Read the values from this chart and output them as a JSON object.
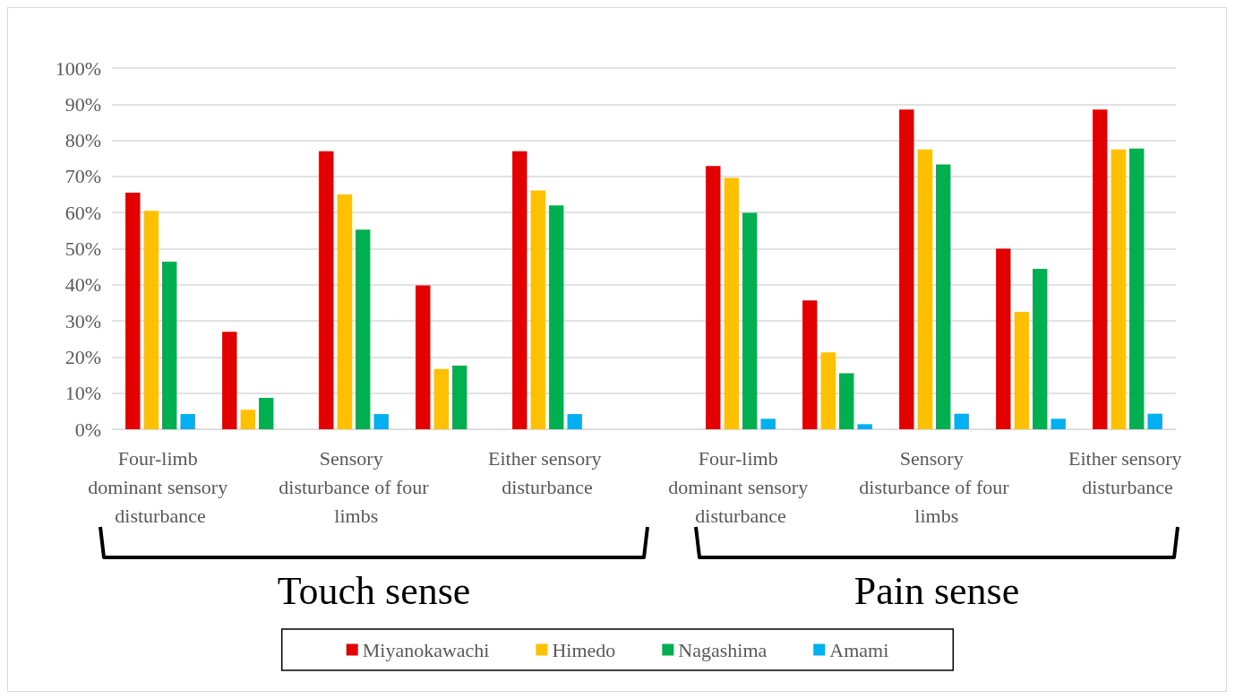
{
  "chart_data": {
    "type": "bar",
    "categories": [
      "Four-limb dominant sensory disturbance",
      null,
      "Sensory disturbance of four limbs",
      null,
      "Either sensory disturbance",
      null,
      "Four-limb dominant sensory disturbance",
      null,
      "Sensory disturbance of four limbs",
      null,
      "Either sensory disturbance"
    ],
    "series": [
      {
        "name": "Miyanokawachi",
        "color": "#e30000",
        "values": [
          65.5,
          27.0,
          77.0,
          39.8,
          77.0,
          null,
          72.9,
          35.7,
          88.5,
          50.0,
          88.5
        ]
      },
      {
        "name": "Himedo",
        "color": "#ffc000",
        "values": [
          60.5,
          5.4,
          65.0,
          16.7,
          66.1,
          null,
          69.6,
          21.3,
          77.5,
          32.5,
          77.5
        ]
      },
      {
        "name": "Nagashima",
        "color": "#00b050",
        "values": [
          46.4,
          8.7,
          55.3,
          17.6,
          62.0,
          null,
          59.9,
          15.5,
          73.3,
          44.4,
          77.7
        ]
      },
      {
        "name": "Amami",
        "color": "#00b0f0",
        "values": [
          4.2,
          0,
          4.2,
          0,
          4.2,
          null,
          2.9,
          1.4,
          4.3,
          2.9,
          4.3
        ]
      }
    ],
    "ylim": [
      0,
      100
    ],
    "yticks": [
      {
        "value": 0,
        "label": "0%"
      },
      {
        "value": 10,
        "label": "10%"
      },
      {
        "value": 20,
        "label": "20%"
      },
      {
        "value": 30,
        "label": "30%"
      },
      {
        "value": 40,
        "label": "40%"
      },
      {
        "value": 50,
        "label": "50%"
      },
      {
        "value": 60,
        "label": "60%"
      },
      {
        "value": 70,
        "label": "70%"
      },
      {
        "value": 80,
        "label": "80%"
      },
      {
        "value": 90,
        "label": "90%"
      },
      {
        "value": 100,
        "label": "100%"
      }
    ],
    "grid": "y",
    "legend": "bottom",
    "annotations": [
      "Touch sense",
      "Pain sense"
    ]
  }
}
